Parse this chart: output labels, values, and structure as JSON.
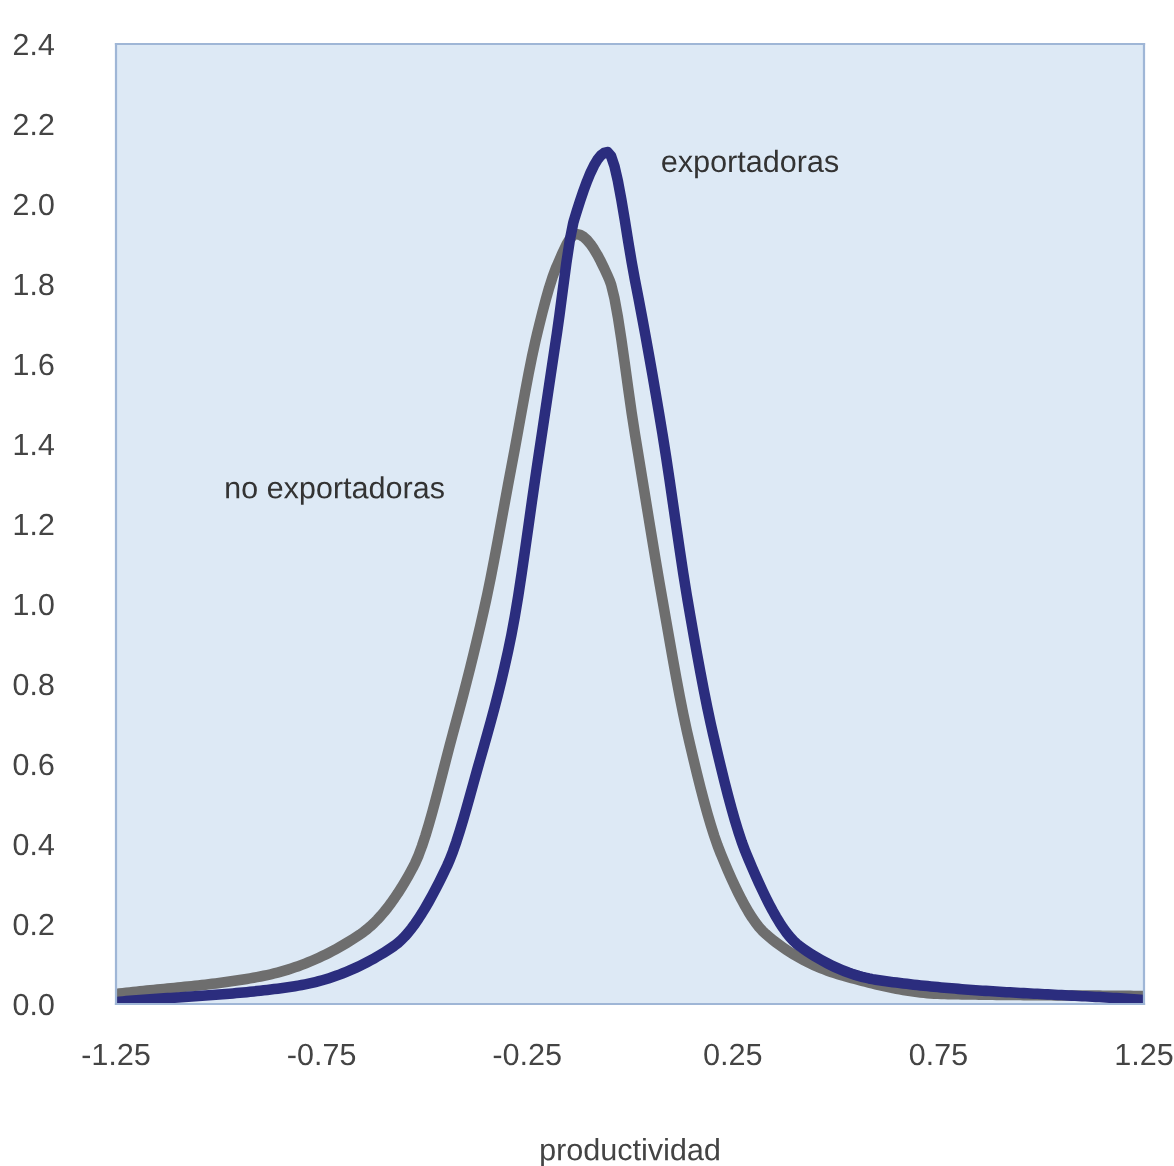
{
  "chart_data": {
    "type": "line",
    "xlabel": "productividad",
    "xlim": [
      -1.25,
      1.25
    ],
    "xticks": [
      -1.25,
      -0.75,
      -0.25,
      0.25,
      0.75,
      1.25
    ],
    "ylim": [
      0,
      2.4
    ],
    "yticks": [
      {
        "value": 0,
        "label": "0.0"
      },
      0.2,
      0.4,
      0.6,
      0.8,
      {
        "value": 1,
        "label": "1.0"
      },
      1.2,
      1.4,
      1.6,
      1.8,
      {
        "value": 2,
        "label": "2.0"
      },
      2.2,
      2.4
    ],
    "grid": false,
    "legend": false,
    "marker": "none",
    "line_style": "solid",
    "series": [
      {
        "name": "no exportadoras",
        "color": "#6e6e6e",
        "x": [
          -1.25,
          -0.893,
          -0.655,
          -0.526,
          -0.431,
          -0.35,
          -0.288,
          -0.226,
          -0.178,
          -0.131,
          -0.05,
          0.012,
          0.079,
          0.14,
          0.221,
          0.33,
          0.521,
          0.76,
          1.25
        ],
        "values": [
          0.025,
          0.07,
          0.175,
          0.345,
          0.675,
          1.01,
          1.345,
          1.675,
          1.845,
          1.925,
          1.81,
          1.425,
          1.01,
          0.675,
          0.375,
          0.175,
          0.07,
          0.025,
          0.02
        ]
      },
      {
        "name": "exportadoras",
        "color": "#2b2d7e",
        "x": [
          -1.25,
          -0.812,
          -0.574,
          -0.445,
          -0.369,
          -0.288,
          -0.226,
          -0.178,
          -0.136,
          -0.055,
          0.012,
          0.079,
          0.14,
          0.202,
          0.283,
          0.412,
          0.602,
          1.25
        ],
        "values": [
          0.005,
          0.045,
          0.145,
          0.345,
          0.595,
          0.925,
          1.345,
          1.675,
          1.96,
          2.13,
          1.81,
          1.425,
          1.01,
          0.675,
          0.375,
          0.145,
          0.06,
          0.01
        ]
      }
    ]
  }
}
